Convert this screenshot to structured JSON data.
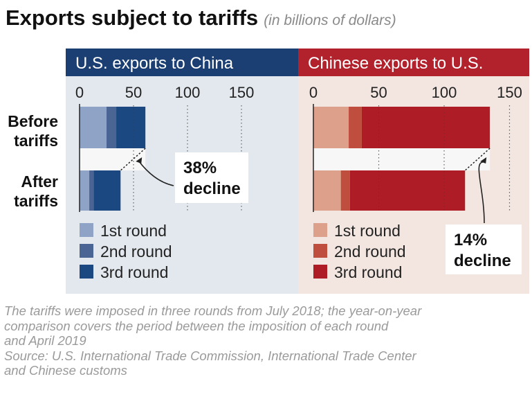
{
  "title": "Exports subject to tariffs",
  "subtitle": "(in billions of dollars)",
  "footnote": "The tariffs were imposed in three rounds from July 2018; the year-on-year\ncomparison covers the period between the imposition of each round\nand April 2019",
  "source": "Source: U.S. International Trade Commission, International Trade Center\nand Chinese customs",
  "colors": {
    "us_panel_bg": "#e3e8ee",
    "us_header": "#1b3f72",
    "cn_panel_bg": "#f3e6e1",
    "cn_header": "#b1222c"
  },
  "row_labels": [
    "Before\ntariffs",
    "After\ntariffs"
  ],
  "chart_data": [
    {
      "type": "bar",
      "orientation": "horizontal",
      "stacked": true,
      "title": "U.S. exports to China",
      "categories": [
        "Before tariffs",
        "After tariffs"
      ],
      "xlim": [
        0,
        150
      ],
      "xticks": [
        0,
        50,
        100,
        150
      ],
      "series": [
        {
          "name": "1st round",
          "color": "#8ea3c6",
          "values": [
            25,
            9
          ]
        },
        {
          "name": "2nd round",
          "color": "#4a6593",
          "values": [
            9,
            4
          ]
        },
        {
          "name": "3rd round",
          "color": "#1b4880",
          "values": [
            27,
            25
          ]
        }
      ],
      "totals": [
        61,
        38
      ],
      "annotation": {
        "line1": "38%",
        "line2": "decline"
      },
      "legend_position": "bottom-left"
    },
    {
      "type": "bar",
      "orientation": "horizontal",
      "stacked": true,
      "title": "Chinese exports to U.S.",
      "categories": [
        "Before tariffs",
        "After tariffs"
      ],
      "xlim": [
        0,
        150
      ],
      "xticks": [
        0,
        50,
        100,
        150
      ],
      "series": [
        {
          "name": "1st round",
          "color": "#dda08a",
          "values": [
            27,
            21
          ]
        },
        {
          "name": "2nd round",
          "color": "#c04e3f",
          "values": [
            10,
            7
          ]
        },
        {
          "name": "3rd round",
          "color": "#ae1c25",
          "values": [
            98,
            88
          ]
        }
      ],
      "totals": [
        135,
        116
      ],
      "annotation": {
        "line1": "14%",
        "line2": "decline"
      },
      "legend_position": "bottom-left"
    }
  ]
}
